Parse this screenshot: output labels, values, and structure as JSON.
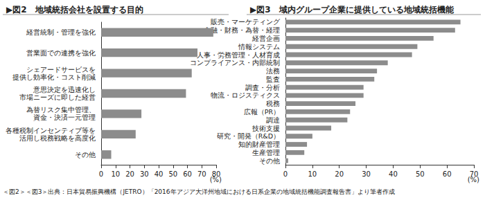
{
  "chart_data": [
    {
      "type": "bar",
      "title": "▶図2　地域統括会社を設置する目的",
      "orientation": "horizontal",
      "categories": [
        "経営統制・管理を強化",
        "営業面での連携を強化",
        "シェアードサービスを\n提供し効率化・コスト削減",
        "意思決定を迅速化し\n市場ニーズに即した経営",
        "為替リスク集中管理、\n資金・決済一元管理",
        "各種税制インセンティブ等を\n活用し税務戦略を高度化",
        "その他"
      ],
      "values": [
        78,
        67,
        63,
        59,
        28,
        24,
        7
      ],
      "color": "#8c8c8c",
      "xlabel": "(%)",
      "xlim": [
        0,
        80
      ],
      "xticks": [
        0,
        10,
        20,
        30,
        40,
        50,
        60,
        70,
        80
      ],
      "grid": false
    },
    {
      "type": "bar",
      "title": "▶図3　域内グループ企業に提供している地域統括機能",
      "orientation": "horizontal",
      "categories": [
        "販売・マーケティング",
        "金融・財務・為替・経理",
        "経営企画",
        "情報システム",
        "人事・労務管理・人材育成",
        "コンプライアンス・内部統制",
        "法務",
        "監査",
        "調査・分析",
        "物流・ロジスティクス",
        "税務",
        "広報（PR）",
        "調達",
        "技術支援",
        "研究・開発（R&D）",
        "知的財産管理",
        "生産管理",
        "その他"
      ],
      "values": [
        65,
        63,
        55,
        49,
        47,
        38,
        34,
        33,
        29,
        29,
        26,
        24,
        23,
        17,
        10,
        8,
        7,
        1
      ],
      "color": "#8c8c8c",
      "xlabel": "(%)",
      "xlim": [
        0,
        70
      ],
      "xticks": [
        0,
        10,
        20,
        30,
        40,
        50,
        60,
        70
      ],
      "grid": false
    }
  ],
  "source": "＜図2＞＜図3＞出典：日本貿易振興機構（JETRO）「2016年アジア大洋州地域における日系企業の地域統括機能調査報告書」より筆者作成"
}
